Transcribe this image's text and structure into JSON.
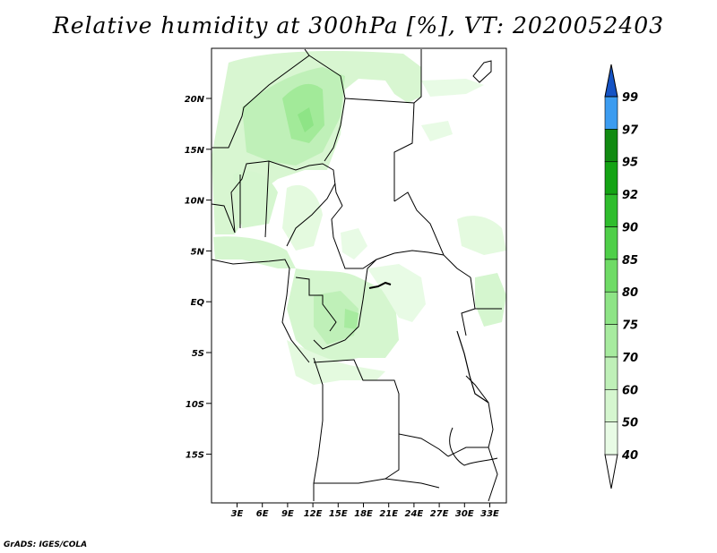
{
  "title": "Relative humidity at 300hPa [%], VT: 2020052403",
  "credit": "GrADS: IGES/COLA",
  "lat_ticks": [
    "20N",
    "15N",
    "10N",
    "5N",
    "EQ",
    "5S",
    "10S",
    "15S"
  ],
  "lon_ticks": [
    "3E",
    "6E",
    "9E",
    "12E",
    "15E",
    "18E",
    "21E",
    "24E",
    "27E",
    "30E",
    "33E"
  ],
  "colorbar": {
    "labels": [
      "40",
      "50",
      "60",
      "70",
      "75",
      "80",
      "85",
      "90",
      "92",
      "95",
      "97",
      "99"
    ],
    "colors": [
      "#ffffff",
      "#e8fbe5",
      "#d5f6cf",
      "#bff0b8",
      "#a7eb9f",
      "#8ee486",
      "#6fdb66",
      "#4fcf49",
      "#2fbd2d",
      "#14a314",
      "#118a11",
      "#3c9cf0",
      "#1f72df",
      "#1553c4"
    ]
  },
  "colors": {
    "frame": "#000000",
    "land_outline": "#000000",
    "background": "#ffffff"
  }
}
